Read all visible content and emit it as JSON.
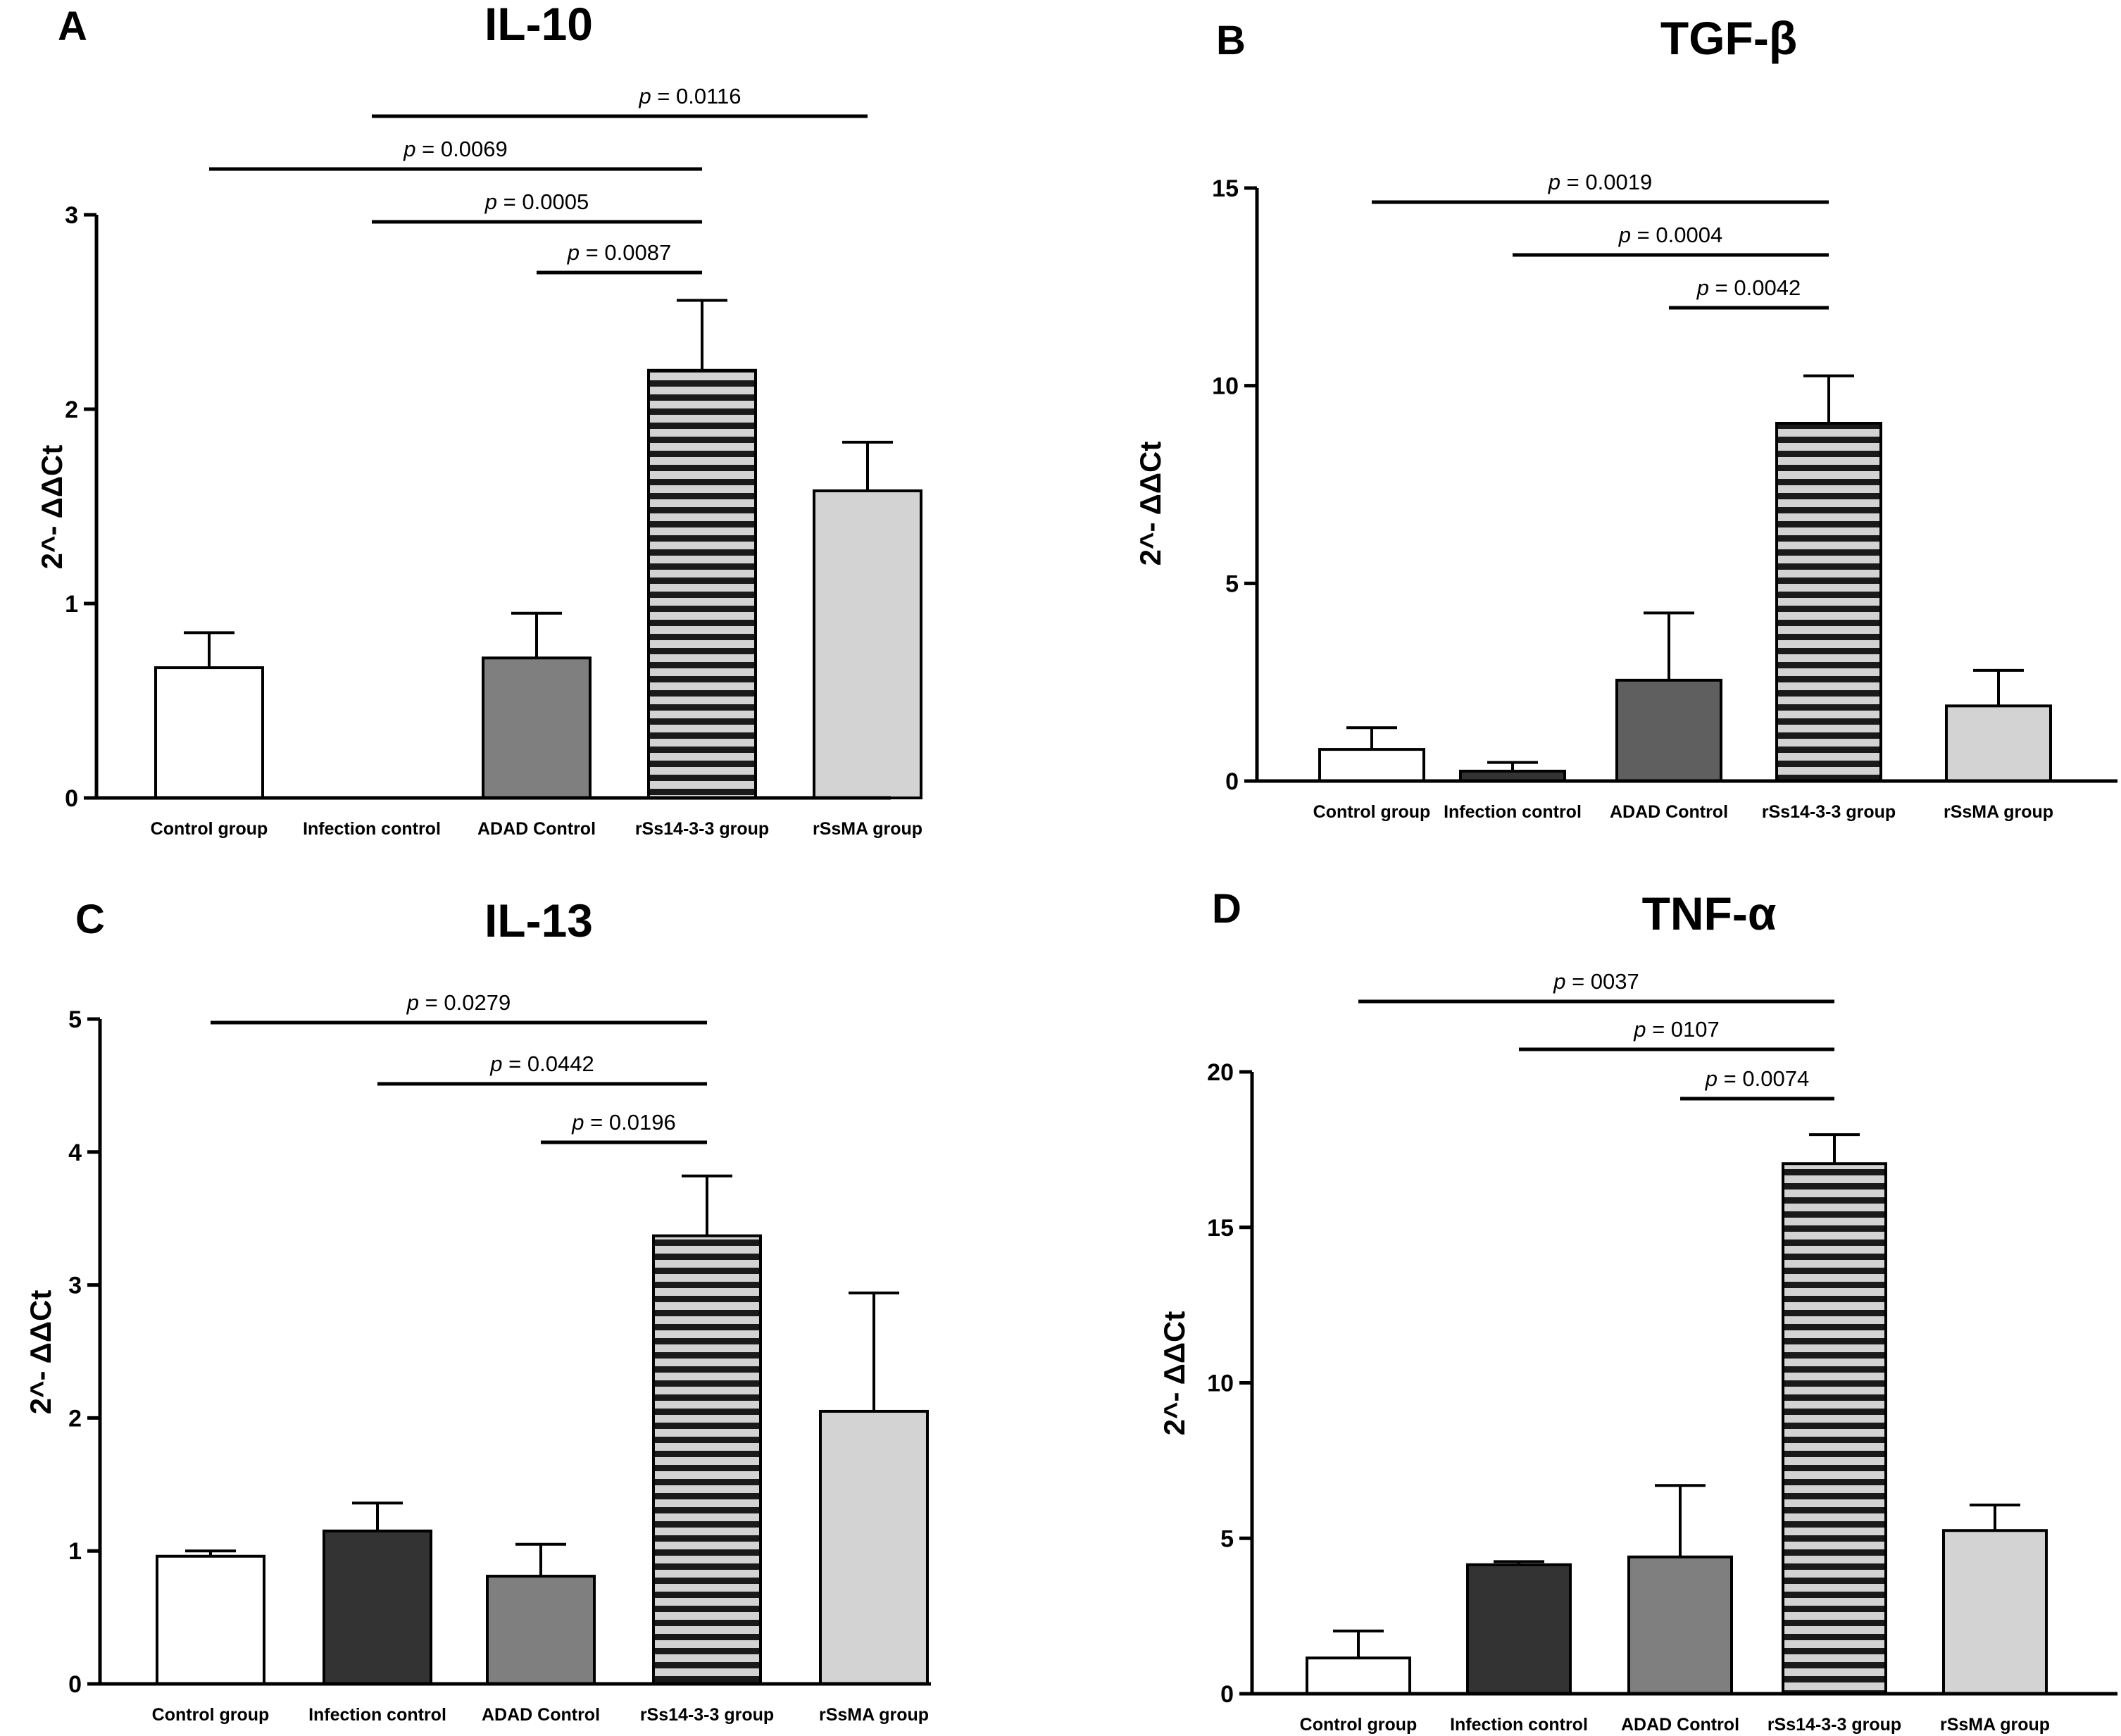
{
  "chart_data": [
    {
      "panel": "A",
      "title": "IL-10",
      "type": "bar",
      "ylabel": "2^- ΔΔCt",
      "ylim": [
        0,
        3
      ],
      "yticks": [
        "0",
        "1",
        "2",
        "3"
      ],
      "categories": [
        "Control group",
        "Infection control",
        "ADAD Control",
        "rSs14-3-3 group",
        "rSsMA group"
      ],
      "values": [
        0.67,
        0,
        0.72,
        2.2,
        1.58
      ],
      "errors": [
        0.18,
        0,
        0.23,
        0.36,
        0.25
      ],
      "fills": [
        "#ffffff",
        "#333333",
        "#7f7f7f",
        "striped",
        "#d3d3d3"
      ],
      "comparisons": [
        {
          "from": 1,
          "to": 4,
          "label": "0.0116"
        },
        {
          "from": 0,
          "to": 3,
          "label": "0.0069"
        },
        {
          "from": 1,
          "to": 3,
          "label": "0.0005"
        },
        {
          "from": 2,
          "to": 3,
          "label": "0.0087"
        }
      ]
    },
    {
      "panel": "B",
      "title": "TGF-β",
      "type": "bar",
      "ylabel": "2^- ΔΔCt",
      "ylim": [
        0,
        15
      ],
      "yticks": [
        "0",
        "5",
        "10",
        "15"
      ],
      "categories": [
        "Control group",
        "Infection control",
        "ADAD Control",
        "rSs14-3-3 group",
        "rSsMA group"
      ],
      "values": [
        0.8,
        0.25,
        2.55,
        9.05,
        1.9
      ],
      "errors": [
        0.55,
        0.22,
        1.7,
        1.2,
        0.9
      ],
      "fills": [
        "#ffffff",
        "#333333",
        "#5f5f5f",
        "striped",
        "#d3d3d3"
      ],
      "comparisons": [
        {
          "from": 0,
          "to": 3,
          "label": "0.0019"
        },
        {
          "from": 1,
          "to": 3,
          "label": "0.0004"
        },
        {
          "from": 2,
          "to": 3,
          "label": "0.0042"
        }
      ]
    },
    {
      "panel": "C",
      "title": "IL-13",
      "type": "bar",
      "ylabel": "2^- ΔΔCt",
      "ylim": [
        0,
        5
      ],
      "yticks": [
        "0",
        "1",
        "2",
        "3",
        "4",
        "5"
      ],
      "categories": [
        "Control group",
        "Infection control",
        "ADAD Control",
        "rSs14-3-3 group",
        "rSsMA group"
      ],
      "values": [
        0.96,
        1.15,
        0.81,
        3.37,
        2.05
      ],
      "errors": [
        0.04,
        0.21,
        0.24,
        0.45,
        0.89
      ],
      "fills": [
        "#ffffff",
        "#333333",
        "#7f7f7f",
        "striped",
        "#d3d3d3"
      ],
      "comparisons": [
        {
          "from": 0,
          "to": 3,
          "label": "0.0279"
        },
        {
          "from": 1,
          "to": 3,
          "label": "0.0442"
        },
        {
          "from": 2,
          "to": 3,
          "label": "0.0196"
        }
      ]
    },
    {
      "panel": "D",
      "title": "TNF-α",
      "type": "bar",
      "ylabel": "2^- ΔΔCt",
      "ylim": [
        0,
        20
      ],
      "yticks": [
        "0",
        "5",
        "10",
        "15",
        "20"
      ],
      "categories": [
        "Control group",
        "Infection control",
        "ADAD Control",
        "rSs14-3-3 group",
        "rSsMA group"
      ],
      "values": [
        1.15,
        4.15,
        4.4,
        17.05,
        5.25
      ],
      "errors": [
        0.87,
        0.1,
        2.3,
        0.93,
        0.82
      ],
      "fills": [
        "#ffffff",
        "#333333",
        "#7f7f7f",
        "striped",
        "#d3d3d3"
      ],
      "comparisons": [
        {
          "from": 0,
          "to": 3,
          "label": "0037"
        },
        {
          "from": 1,
          "to": 3,
          "label": "0107"
        },
        {
          "from": 2,
          "to": 3,
          "label": "0.0074"
        }
      ]
    }
  ]
}
